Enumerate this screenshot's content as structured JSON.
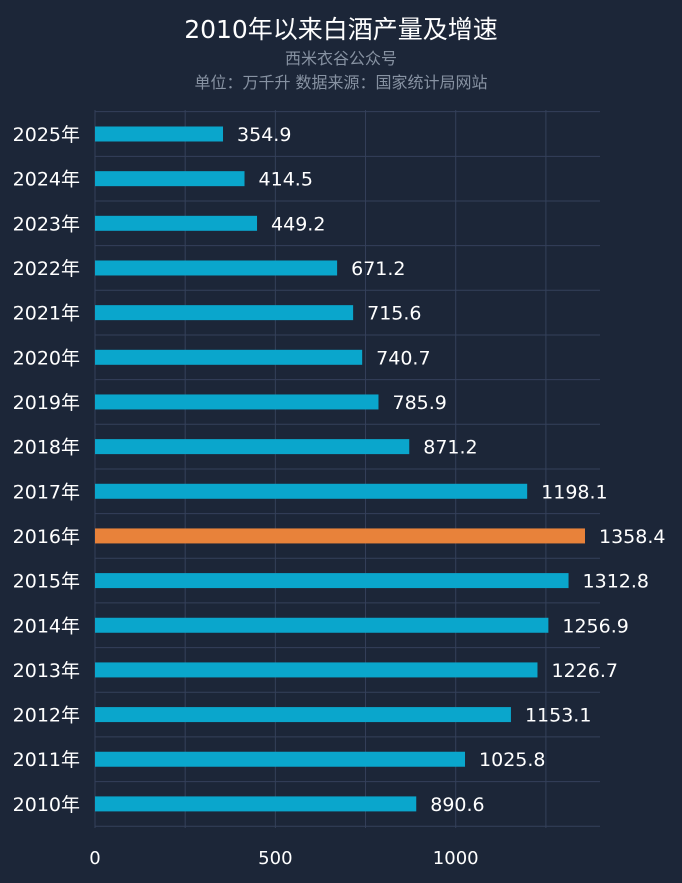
{
  "chart_data": {
    "type": "bar",
    "orientation": "horizontal",
    "title": "2010年以来白酒产量及增速",
    "subtitle": "西米衣谷公众号",
    "note": "单位：万千升  数据来源：国家统计局网站",
    "categories": [
      "2025年",
      "2024年",
      "2023年",
      "2022年",
      "2021年",
      "2020年",
      "2019年",
      "2018年",
      "2017年",
      "2016年",
      "2015年",
      "2014年",
      "2013年",
      "2012年",
      "2011年",
      "2010年"
    ],
    "values": [
      354.9,
      414.5,
      449.2,
      671.2,
      715.6,
      740.7,
      785.9,
      871.2,
      1198.1,
      1358.4,
      1312.8,
      1256.9,
      1226.7,
      1153.1,
      1025.8,
      890.6
    ],
    "value_labels": [
      "354.9",
      "414.5",
      "449.2",
      "671.2",
      "715.6",
      "740.7",
      "785.9",
      "871.2",
      "1198.1",
      "1358.4",
      "1312.8",
      "1256.9",
      "1226.7",
      "1153.1",
      "1025.8",
      "890.6"
    ],
    "highlight_category": "2016年",
    "xlim": [
      0,
      1400
    ],
    "xticks": [
      0,
      500,
      1000
    ],
    "xtick_labels": [
      "0",
      "500",
      "1000"
    ],
    "grid": true,
    "colors": {
      "background": "#1c2638",
      "bar": "#0aa6cc",
      "highlight": "#e8823a",
      "grid": "#34405a",
      "text": "#ffffff",
      "muted": "#8792a2"
    }
  }
}
